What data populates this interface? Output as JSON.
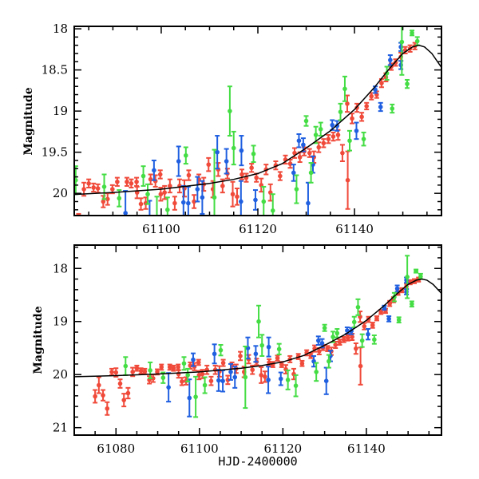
{
  "chart_data": [
    {
      "type": "scatter",
      "panel": "top",
      "xlabel": "",
      "ylabel": "Magnitude",
      "xlim": [
        61082,
        61158
      ],
      "ylim": [
        20.27,
        17.97
      ],
      "y_inverted": true,
      "x_major_ticks": [
        61100,
        61120,
        61140
      ],
      "x_minor_step": 5,
      "y_major_ticks": [
        18,
        18.5,
        19,
        19.5,
        20
      ],
      "y_tick_labels": [
        "18",
        "18.5",
        "19",
        "19.5",
        "20"
      ],
      "y_minor_step": 0.1,
      "grid": false,
      "x_tick_labels": [
        "61100",
        "61120",
        "61140"
      ]
    },
    {
      "type": "scatter",
      "panel": "bottom",
      "xlabel": "HJD-2400000",
      "ylabel": "Magnitude",
      "xlim": [
        61070,
        61158
      ],
      "ylim": [
        21.14,
        17.56
      ],
      "y_inverted": true,
      "x_major_ticks": [
        61080,
        61100,
        61120,
        61140
      ],
      "x_minor_step": 5,
      "y_major_ticks": [
        18,
        19,
        20,
        21
      ],
      "y_tick_labels": [
        "18",
        "19",
        "20",
        "21"
      ],
      "y_minor_step": 0.2,
      "grid": false,
      "x_tick_labels": [
        "61080",
        "61100",
        "61120",
        "61140"
      ]
    }
  ],
  "series": [
    {
      "name": "red",
      "color": "#f04a3a",
      "default_err": 0.08,
      "points": [
        [
          61075,
          20.41,
          0.12
        ],
        [
          61075.9,
          20.2,
          0.15
        ],
        [
          61076.9,
          20.39,
          0.1
        ],
        [
          61077.9,
          20.64,
          0.12
        ],
        [
          61079,
          19.95,
          0.06
        ],
        [
          61080,
          19.96,
          0.08
        ],
        [
          61081,
          20.17,
          0.08
        ],
        [
          61081.9,
          20.48,
          0.12
        ],
        [
          61082.9,
          20.35,
          0.1
        ],
        [
          61084,
          19.95,
          0.08
        ],
        [
          61085,
          19.88,
          0.05
        ],
        [
          61086,
          19.93,
          0.05
        ],
        [
          61086.9,
          19.94,
          0.05
        ],
        [
          61088,
          20.1,
          0.07
        ],
        [
          61088.9,
          20.07,
          0.07
        ],
        [
          61089.9,
          19.95,
          0.05
        ],
        [
          61090.9,
          19.86,
          0.05
        ],
        [
          61092.9,
          19.86,
          0.05
        ],
        [
          61093.8,
          19.88,
          0.05
        ],
        [
          61094.9,
          19.86,
          0.05
        ],
        [
          61095,
          19.99,
          0.07
        ],
        [
          61095.8,
          20.13,
          0.07
        ],
        [
          61096.8,
          20.12,
          0.07
        ],
        [
          61097.8,
          19.83,
          0.06
        ],
        [
          61098.8,
          19.85,
          0.07
        ],
        [
          61099.8,
          19.77,
          0.05
        ],
        [
          61099.9,
          20.01,
          0.08
        ],
        [
          61100.7,
          19.99,
          0.08
        ],
        [
          61101.8,
          19.91,
          0.08
        ],
        [
          61102.8,
          20.12,
          0.08
        ],
        [
          61103.8,
          19.91,
          0.08
        ],
        [
          61104.8,
          19.94,
          0.1
        ],
        [
          61105.7,
          19.78,
          0.06
        ],
        [
          61106.8,
          20.1,
          0.08
        ],
        [
          61107.8,
          19.83,
          0.06
        ],
        [
          61108.8,
          19.89,
          0.08
        ],
        [
          61109.8,
          19.65,
          0.08
        ],
        [
          61110.7,
          19.95,
          0.1
        ],
        [
          61111.8,
          19.71,
          0.08
        ],
        [
          61112.7,
          19.91,
          0.08
        ],
        [
          61113.7,
          19.76,
          0.06
        ],
        [
          61114.8,
          20.01,
          0.15
        ],
        [
          61115.7,
          20.04,
          0.1
        ],
        [
          61116.7,
          19.77,
          0.06
        ],
        [
          61117.6,
          19.81,
          0.05
        ],
        [
          61118.7,
          19.69,
          0.05
        ],
        [
          61119.7,
          19.81,
          0.05
        ],
        [
          61120.7,
          19.9,
          0.08
        ],
        [
          61121.7,
          19.71,
          0.06
        ],
        [
          61122.6,
          19.99,
          0.1
        ],
        [
          61123.7,
          19.66,
          0.05
        ],
        [
          61124.6,
          19.79,
          0.05
        ],
        [
          61125.7,
          19.59,
          0.05
        ],
        [
          61126.7,
          19.64,
          0.05
        ],
        [
          61127.6,
          19.51,
          0.06
        ],
        [
          61128.7,
          19.56,
          0.06
        ],
        [
          61129.6,
          19.49,
          0.05
        ],
        [
          61130.7,
          19.51,
          0.05
        ],
        [
          61131.6,
          19.56,
          0.07
        ],
        [
          61132.6,
          19.44,
          0.06
        ],
        [
          61133.6,
          19.39,
          0.05
        ],
        [
          61134.6,
          19.34,
          0.05
        ],
        [
          61135.6,
          19.31,
          0.05
        ],
        [
          61136.6,
          19.29,
          0.06
        ],
        [
          61137.5,
          19.51,
          0.1
        ],
        [
          61138.5,
          18.91,
          0.1
        ],
        [
          61138.6,
          19.84,
          0.35
        ],
        [
          61139.5,
          19.09,
          0.06
        ],
        [
          61140.5,
          18.96,
          0.05
        ],
        [
          61141.5,
          19.07,
          0.05
        ],
        [
          61142.5,
          18.94,
          0.04
        ],
        [
          61143.5,
          18.82,
          0.04
        ],
        [
          61144.6,
          18.8,
          0.04
        ],
        [
          61145.6,
          18.66,
          0.05
        ],
        [
          61146.5,
          18.59,
          0.05
        ],
        [
          61147.6,
          18.46,
          0.04
        ],
        [
          61148.5,
          18.41,
          0.04
        ],
        [
          61149.6,
          18.34,
          0.05
        ],
        [
          61150.5,
          18.26,
          0.04
        ],
        [
          61151.5,
          18.24,
          0.04
        ],
        [
          61152.5,
          18.21,
          0.04
        ]
      ]
    },
    {
      "name": "blue",
      "color": "#1f5fe0",
      "default_err": 0.08,
      "points": [
        [
          61092.6,
          20.24,
          0.27
        ],
        [
          61097.6,
          20.44,
          0.35
        ],
        [
          61098.5,
          19.72,
          0.12
        ],
        [
          61103.6,
          19.61,
          0.18
        ],
        [
          61104.6,
          20.11,
          0.2
        ],
        [
          61105.6,
          20.12,
          0.2
        ],
        [
          61107.5,
          19.95,
          0.15
        ],
        [
          61108.5,
          20.05,
          0.2
        ],
        [
          61111.6,
          19.5,
          0.2
        ],
        [
          61113.5,
          19.61,
          0.15
        ],
        [
          61116.5,
          20.1,
          0.25
        ],
        [
          61116.6,
          19.48,
          0.18
        ],
        [
          61119.5,
          20.08,
          0.12
        ],
        [
          61127.4,
          19.75,
          0.1
        ],
        [
          61128.5,
          19.36,
          0.08
        ],
        [
          61129.4,
          19.41,
          0.08
        ],
        [
          61130.4,
          20.12,
          0.25
        ],
        [
          61131.4,
          19.65,
          0.1
        ],
        [
          61135.4,
          19.17,
          0.06
        ],
        [
          61136.4,
          19.18,
          0.06
        ],
        [
          61140.4,
          19.24,
          0.1
        ],
        [
          61144.3,
          18.74,
          0.04
        ],
        [
          61145.4,
          18.95,
          0.05
        ],
        [
          61147.4,
          18.38,
          0.06
        ],
        [
          61149.6,
          18.22,
          0.05
        ],
        [
          61149.6,
          18.44,
          0.05
        ]
      ]
    },
    {
      "name": "green",
      "color": "#44dd44",
      "default_err": 0.08,
      "points": [
        [
          61082.3,
          19.84,
          0.17
        ],
        [
          61088.2,
          19.92,
          0.15
        ],
        [
          61091.3,
          20.06,
          0.1
        ],
        [
          61096.3,
          19.79,
          0.12
        ],
        [
          61097.2,
          20.01,
          0.12
        ],
        [
          61099.1,
          20.42,
          0.38
        ],
        [
          61101.3,
          20.2,
          0.15
        ],
        [
          61105.1,
          19.54,
          0.1
        ],
        [
          61111,
          20.05,
          0.58
        ],
        [
          61114.2,
          19.0,
          0.3
        ],
        [
          61115,
          19.45,
          0.2
        ],
        [
          61119.1,
          19.52,
          0.1
        ],
        [
          61121.2,
          20.1,
          0.18
        ],
        [
          61123.1,
          20.21,
          0.2
        ],
        [
          61128,
          19.95,
          0.17
        ],
        [
          61130,
          19.12,
          0.06
        ],
        [
          61131,
          19.75,
          0.12
        ],
        [
          61132,
          19.29,
          0.1
        ],
        [
          61133,
          19.22,
          0.08
        ],
        [
          61137.1,
          19.01,
          0.1
        ],
        [
          61138,
          18.73,
          0.15
        ],
        [
          61139,
          19.36,
          0.12
        ],
        [
          61141.9,
          19.34,
          0.08
        ],
        [
          61146.7,
          18.54,
          0.08
        ],
        [
          61147.8,
          18.97,
          0.05
        ],
        [
          61149.8,
          18.16,
          0.4
        ],
        [
          61150.9,
          18.67,
          0.05
        ],
        [
          61151.9,
          18.05,
          0.03
        ],
        [
          61153,
          18.15,
          0.05
        ]
      ]
    }
  ],
  "model_curve": {
    "name": "model",
    "color": "#000000",
    "points": [
      [
        61070,
        20.04
      ],
      [
        61080,
        20.02
      ],
      [
        61090,
        19.99
      ],
      [
        61100,
        19.95
      ],
      [
        61110,
        19.88
      ],
      [
        61115,
        19.83
      ],
      [
        61120,
        19.76
      ],
      [
        61125,
        19.64
      ],
      [
        61130,
        19.45
      ],
      [
        61135,
        19.24
      ],
      [
        61140,
        18.98
      ],
      [
        61144,
        18.72
      ],
      [
        61147,
        18.5
      ],
      [
        61150,
        18.3
      ],
      [
        61152,
        18.22
      ],
      [
        61153.3,
        18.2
      ],
      [
        61154.5,
        18.22
      ],
      [
        61156,
        18.3
      ],
      [
        61158,
        18.47
      ]
    ]
  }
}
